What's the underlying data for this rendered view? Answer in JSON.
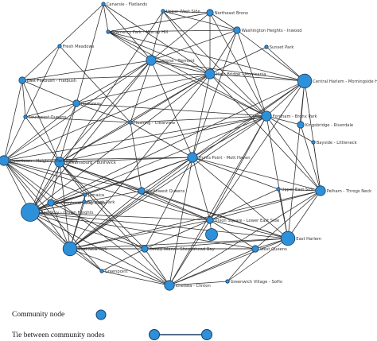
{
  "diagram": {
    "nodes": [
      {
        "id": "canarsie",
        "label": "Canarsie - Flatlands",
        "size": "tiny"
      },
      {
        "id": "upper_west",
        "label": "Upper West Side",
        "size": "tiny"
      },
      {
        "id": "ne_bronx",
        "label": "Northeast Bronx",
        "size": "small"
      },
      {
        "id": "gramercy",
        "label": "Gramercy Park - Murray Hill",
        "size": "tiny"
      },
      {
        "id": "wash_hts",
        "label": "Washington Heights - Inwood",
        "size": "small"
      },
      {
        "id": "fresh_meadows",
        "label": "Fresh Meadows",
        "size": "tiny"
      },
      {
        "id": "sunset_park",
        "label": "Sunset Park",
        "size": "tiny"
      },
      {
        "id": "crotona",
        "label": "Crotona - Tremont",
        "size": "medium"
      },
      {
        "id": "east_flatbush",
        "label": "East Flatbush - Flatbush",
        "size": "small"
      },
      {
        "id": "high_bridge",
        "label": "High Bridge - Morrisania",
        "size": "medium"
      },
      {
        "id": "central_harlem",
        "label": "Central Harlem - Morningside Heights",
        "size": "large"
      },
      {
        "id": "rockaway",
        "label": "Rockaway",
        "size": "small"
      },
      {
        "id": "se_queens",
        "label": "Southeast Queens",
        "size": "tiny"
      },
      {
        "id": "flushing",
        "label": "Flushing - Clearview",
        "size": "tiny"
      },
      {
        "id": "fordham",
        "label": "Fordham - Bronx Park",
        "size": "medium"
      },
      {
        "id": "kingsbridge",
        "label": "Kingsbridge - Riverdale",
        "size": "small"
      },
      {
        "id": "bayside",
        "label": "Bayside - Littleneck",
        "size": "tiny"
      },
      {
        "id": "downtown",
        "label": "Downtown - Heights - Park Slope",
        "size": "medium"
      },
      {
        "id": "williamsburg",
        "label": "Williamsburg - Bushwick",
        "size": "medium"
      },
      {
        "id": "hunts_point",
        "label": "Hunts Point - Mott Haven",
        "size": "medium"
      },
      {
        "id": "jamaica",
        "label": "Jamaica",
        "size": "tiny"
      },
      {
        "id": "southwest_queens",
        "label": "Southwest Queens",
        "size": "small"
      },
      {
        "id": "upper_east",
        "label": "Upper East Side",
        "size": "tiny"
      },
      {
        "id": "pelham",
        "label": "Pelham - Throgs Neck",
        "size": "medium"
      },
      {
        "id": "bed_stuy",
        "label": "Bed Stuy - Crown Heights",
        "size": "xlarge"
      },
      {
        "id": "bensonhurst",
        "label": "Bensonhurst - Bay Ridge",
        "size": "small"
      },
      {
        "id": "union_sq",
        "label": "Union Square - Lower East Side",
        "size": "small"
      },
      {
        "id": "borough_park",
        "label": "Borough Park",
        "size": "tiny"
      },
      {
        "id": "east_ny",
        "label": "East New York",
        "size": "large"
      },
      {
        "id": "lic",
        "label": "Long Island City - Astoria",
        "size": "target"
      },
      {
        "id": "east_harlem",
        "label": "East Harlem",
        "size": "large"
      },
      {
        "id": "coney",
        "label": "Coney Island - Sheepshead Bay",
        "size": "small"
      },
      {
        "id": "west_queens",
        "label": "West Queens",
        "size": "small"
      },
      {
        "id": "greenpoint",
        "label": "Greenpoint",
        "size": "tiny"
      },
      {
        "id": "chelsea",
        "label": "Chelsea - Clinton",
        "size": "medium"
      },
      {
        "id": "greenwich",
        "label": "Greenwich Village - SoHo",
        "size": "tiny"
      }
    ],
    "edges": [
      [
        "canarsie",
        "gramercy"
      ],
      [
        "canarsie",
        "crotona"
      ],
      [
        "canarsie",
        "east_flatbush"
      ],
      [
        "canarsie",
        "high_bridge"
      ],
      [
        "canarsie",
        "rockaway"
      ],
      [
        "upper_west",
        "crotona"
      ],
      [
        "upper_west",
        "high_bridge"
      ],
      [
        "upper_west",
        "ne_bronx"
      ],
      [
        "upper_west",
        "wash_hts"
      ],
      [
        "upper_west",
        "fordham"
      ],
      [
        "upper_west",
        "bed_stuy"
      ],
      [
        "ne_bronx",
        "wash_hts"
      ],
      [
        "ne_bronx",
        "high_bridge"
      ],
      [
        "ne_bronx",
        "crotona"
      ],
      [
        "ne_bronx",
        "fordham"
      ],
      [
        "ne_bronx",
        "gramercy"
      ],
      [
        "gramercy",
        "crotona"
      ],
      [
        "gramercy",
        "high_bridge"
      ],
      [
        "gramercy",
        "central_harlem"
      ],
      [
        "gramercy",
        "wash_hts"
      ],
      [
        "gramercy",
        "fordham"
      ],
      [
        "wash_hts",
        "high_bridge"
      ],
      [
        "wash_hts",
        "crotona"
      ],
      [
        "wash_hts",
        "fordham"
      ],
      [
        "wash_hts",
        "central_harlem"
      ],
      [
        "wash_hts",
        "hunts_point"
      ],
      [
        "fresh_meadows",
        "se_queens"
      ],
      [
        "fresh_meadows",
        "flushing"
      ],
      [
        "sunset_park",
        "high_bridge"
      ],
      [
        "sunset_park",
        "central_harlem"
      ],
      [
        "crotona",
        "high_bridge"
      ],
      [
        "crotona",
        "fordham"
      ],
      [
        "crotona",
        "rockaway"
      ],
      [
        "crotona",
        "east_flatbush"
      ],
      [
        "crotona",
        "flushing"
      ],
      [
        "crotona",
        "hunts_point"
      ],
      [
        "crotona",
        "williamsburg"
      ],
      [
        "crotona",
        "bed_stuy"
      ],
      [
        "crotona",
        "downtown"
      ],
      [
        "crotona",
        "central_harlem"
      ],
      [
        "east_flatbush",
        "rockaway"
      ],
      [
        "east_flatbush",
        "high_bridge"
      ],
      [
        "east_flatbush",
        "se_queens"
      ],
      [
        "east_flatbush",
        "downtown"
      ],
      [
        "east_flatbush",
        "williamsburg"
      ],
      [
        "high_bridge",
        "central_harlem"
      ],
      [
        "high_bridge",
        "fordham"
      ],
      [
        "high_bridge",
        "hunts_point"
      ],
      [
        "high_bridge",
        "williamsburg"
      ],
      [
        "high_bridge",
        "bed_stuy"
      ],
      [
        "high_bridge",
        "rockaway"
      ],
      [
        "high_bridge",
        "flushing"
      ],
      [
        "high_bridge",
        "downtown"
      ],
      [
        "high_bridge",
        "pelham"
      ],
      [
        "high_bridge",
        "east_ny"
      ],
      [
        "central_harlem",
        "fordham"
      ],
      [
        "central_harlem",
        "hunts_point"
      ],
      [
        "central_harlem",
        "east_harlem"
      ],
      [
        "central_harlem",
        "pelham"
      ],
      [
        "central_harlem",
        "bed_stuy"
      ],
      [
        "central_harlem",
        "east_ny"
      ],
      [
        "central_harlem",
        "union_sq"
      ],
      [
        "rockaway",
        "se_queens"
      ],
      [
        "rockaway",
        "downtown"
      ],
      [
        "rockaway",
        "flushing"
      ],
      [
        "rockaway",
        "williamsburg"
      ],
      [
        "rockaway",
        "bed_stuy"
      ],
      [
        "rockaway",
        "fordham"
      ],
      [
        "se_queens",
        "downtown"
      ],
      [
        "se_queens",
        "williamsburg"
      ],
      [
        "se_queens",
        "flushing"
      ],
      [
        "flushing",
        "fordham"
      ],
      [
        "flushing",
        "hunts_point"
      ],
      [
        "flushing",
        "williamsburg"
      ],
      [
        "flushing",
        "southwest_queens"
      ],
      [
        "fordham",
        "hunts_point"
      ],
      [
        "fordham",
        "kingsbridge"
      ],
      [
        "fordham",
        "pelham"
      ],
      [
        "fordham",
        "east_harlem"
      ],
      [
        "fordham",
        "bed_stuy"
      ],
      [
        "fordham",
        "williamsburg"
      ],
      [
        "fordham",
        "downtown"
      ],
      [
        "fordham",
        "chelsea"
      ],
      [
        "fordham",
        "east_ny"
      ],
      [
        "fordham",
        "union_sq"
      ],
      [
        "kingsbridge",
        "pelham"
      ],
      [
        "kingsbridge",
        "central_harlem"
      ],
      [
        "bayside",
        "pelham"
      ],
      [
        "bayside",
        "fordham"
      ],
      [
        "downtown",
        "williamsburg"
      ],
      [
        "downtown",
        "bed_stuy"
      ],
      [
        "downtown",
        "bensonhurst"
      ],
      [
        "downtown",
        "jamaica"
      ],
      [
        "downtown",
        "hunts_point"
      ],
      [
        "downtown",
        "east_ny"
      ],
      [
        "downtown",
        "southwest_queens"
      ],
      [
        "downtown",
        "union_sq"
      ],
      [
        "downtown",
        "chelsea"
      ],
      [
        "downtown",
        "greenpoint"
      ],
      [
        "williamsburg",
        "bed_stuy"
      ],
      [
        "williamsburg",
        "bensonhurst"
      ],
      [
        "williamsburg",
        "jamaica"
      ],
      [
        "williamsburg",
        "hunts_point"
      ],
      [
        "williamsburg",
        "southwest_queens"
      ],
      [
        "williamsburg",
        "east_ny"
      ],
      [
        "williamsburg",
        "union_sq"
      ],
      [
        "williamsburg",
        "east_harlem"
      ],
      [
        "williamsburg",
        "chelsea"
      ],
      [
        "williamsburg",
        "coney"
      ],
      [
        "hunts_point",
        "bed_stuy"
      ],
      [
        "hunts_point",
        "pelham"
      ],
      [
        "hunts_point",
        "east_harlem"
      ],
      [
        "hunts_point",
        "union_sq"
      ],
      [
        "hunts_point",
        "southwest_queens"
      ],
      [
        "hunts_point",
        "east_ny"
      ],
      [
        "hunts_point",
        "chelsea"
      ],
      [
        "hunts_point",
        "upper_east"
      ],
      [
        "hunts_point",
        "jamaica"
      ],
      [
        "hunts_point",
        "coney"
      ],
      [
        "jamaica",
        "bed_stuy"
      ],
      [
        "jamaica",
        "bensonhurst"
      ],
      [
        "jamaica",
        "east_ny"
      ],
      [
        "jamaica",
        "borough_park"
      ],
      [
        "southwest_queens",
        "bed_stuy"
      ],
      [
        "southwest_queens",
        "east_ny"
      ],
      [
        "southwest_queens",
        "union_sq"
      ],
      [
        "southwest_queens",
        "east_harlem"
      ],
      [
        "upper_east",
        "east_harlem"
      ],
      [
        "upper_east",
        "union_sq"
      ],
      [
        "upper_east",
        "pelham"
      ],
      [
        "pelham",
        "east_harlem"
      ],
      [
        "pelham",
        "union_sq"
      ],
      [
        "pelham",
        "west_queens"
      ],
      [
        "pelham",
        "chelsea"
      ],
      [
        "pelham",
        "east_ny"
      ],
      [
        "bed_stuy",
        "bensonhurst"
      ],
      [
        "bed_stuy",
        "east_ny"
      ],
      [
        "bed_stuy",
        "union_sq"
      ],
      [
        "bed_stuy",
        "coney"
      ],
      [
        "bed_stuy",
        "chelsea"
      ],
      [
        "bed_stuy",
        "east_harlem"
      ],
      [
        "bed_stuy",
        "greenpoint"
      ],
      [
        "bed_stuy",
        "west_queens"
      ],
      [
        "bed_stuy",
        "borough_park"
      ],
      [
        "bensonhurst",
        "east_ny"
      ],
      [
        "bensonhurst",
        "borough_park"
      ],
      [
        "bensonhurst",
        "coney"
      ],
      [
        "union_sq",
        "east_harlem"
      ],
      [
        "union_sq",
        "chelsea"
      ],
      [
        "union_sq",
        "east_ny"
      ],
      [
        "union_sq",
        "lic"
      ],
      [
        "union_sq",
        "west_queens"
      ],
      [
        "union_sq",
        "coney"
      ],
      [
        "borough_park",
        "east_ny"
      ],
      [
        "east_ny",
        "coney"
      ],
      [
        "east_ny",
        "greenpoint"
      ],
      [
        "east_ny",
        "chelsea"
      ],
      [
        "east_ny",
        "east_harlem"
      ],
      [
        "east_ny",
        "west_queens"
      ],
      [
        "east_harlem",
        "west_queens"
      ],
      [
        "east_harlem",
        "chelsea"
      ],
      [
        "east_harlem",
        "greenwich"
      ],
      [
        "east_harlem",
        "coney"
      ],
      [
        "coney",
        "chelsea"
      ],
      [
        "coney",
        "west_queens"
      ],
      [
        "coney",
        "greenpoint"
      ],
      [
        "chelsea",
        "greenwich"
      ],
      [
        "chelsea",
        "greenpoint"
      ],
      [
        "chelsea",
        "west_queens"
      ],
      [
        "greenwich",
        "west_queens"
      ]
    ]
  },
  "legend": {
    "node_label": "Community node",
    "edge_label": "Tie between community nodes"
  }
}
